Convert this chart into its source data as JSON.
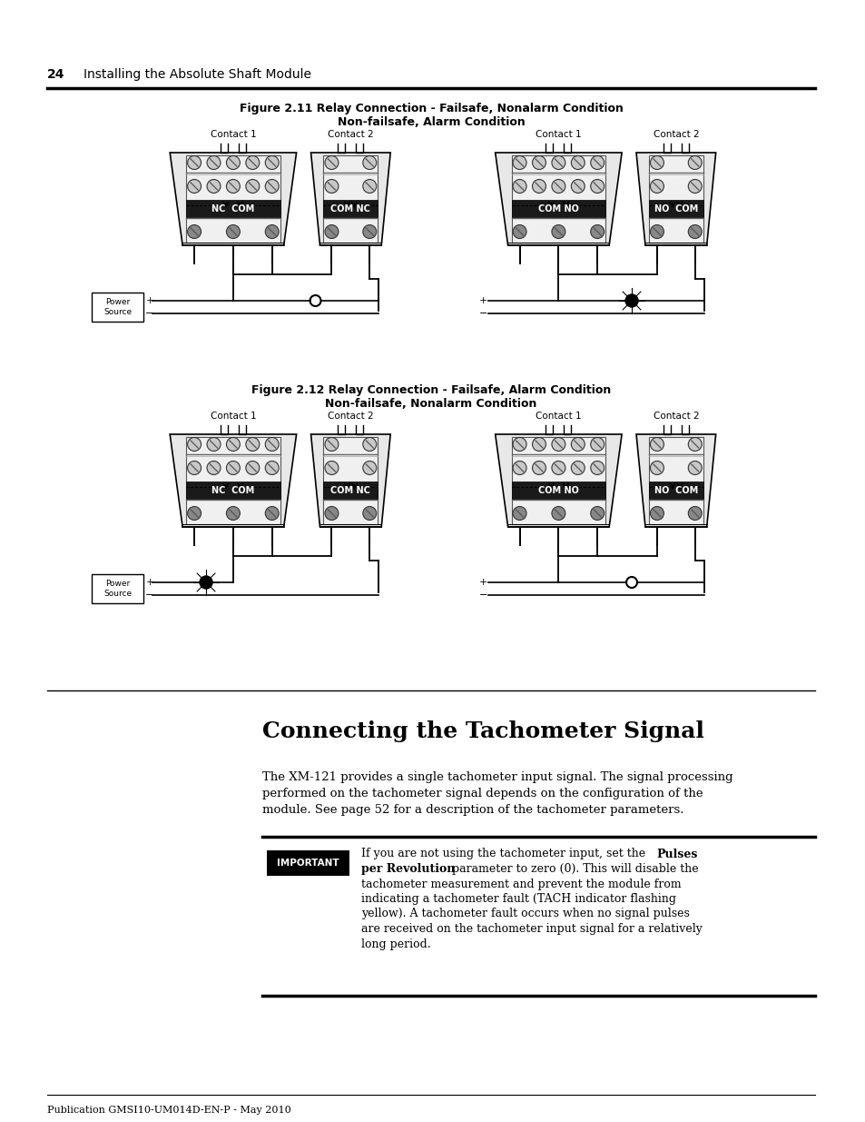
{
  "page_number": "24",
  "header_text": "Installing the Absolute Shaft Module",
  "fig11_title_line1": "Figure 2.11 Relay Connection - Failsafe, Nonalarm Condition",
  "fig11_title_line2": "Non-failsafe, Alarm Condition",
  "fig12_title_line1": "Figure 2.12 Relay Connection - Failsafe, Alarm Condition",
  "fig12_title_line2": "Non-failsafe, Nonalarm Condition",
  "section_title": "Connecting the Tachometer Signal",
  "body_text_1": "The XM-121 provides a single tachometer input signal. The signal processing",
  "body_text_2": "performed on the tachometer signal depends on the configuration of the",
  "body_text_3": "module. See page 52 for a description of the tachometer parameters.",
  "important_label": "IMPORTANT",
  "imp_line1a": "If you are not using the tachometer input, set the ",
  "imp_line1b": "Pulses",
  "imp_line2a": "per Revolution",
  "imp_line2b": " parameter to zero (0). This will disable the",
  "imp_line3": "tachometer measurement and prevent the module from",
  "imp_line4": "indicating a tachometer fault (TACH indicator flashing",
  "imp_line5": "yellow). A tachometer fault occurs when no signal pulses",
  "imp_line6": "are received on the tachometer input signal for a relatively",
  "imp_line7": "long period.",
  "footer_text": "Publication GMSI10-UM014D-EN-P - May 2010",
  "bg_color": "#ffffff",
  "text_color": "#000000",
  "important_bg": "#000000",
  "important_fg": "#ffffff",
  "fig11_left_c1_label": "Contact 1",
  "fig11_left_c2_label": "Contact 2",
  "fig11_left_c1_term": "NC  COM",
  "fig11_left_c2_term": "COM NC",
  "fig11_right_c1_label": "Contact 1",
  "fig11_right_c2_label": "Contact 2",
  "fig11_right_c1_term": "COM NO",
  "fig11_right_c2_term": "NO  COM",
  "fig12_left_c1_label": "Contact 1",
  "fig12_left_c2_label": "Contact 2",
  "fig12_left_c1_term": "NC  COM",
  "fig12_left_c2_term": "COM NC",
  "fig12_right_c1_label": "Contact 1",
  "fig12_right_c2_label": "Contact 2",
  "fig12_right_c1_term": "COM NO",
  "fig12_right_c2_term": "NO  COM"
}
